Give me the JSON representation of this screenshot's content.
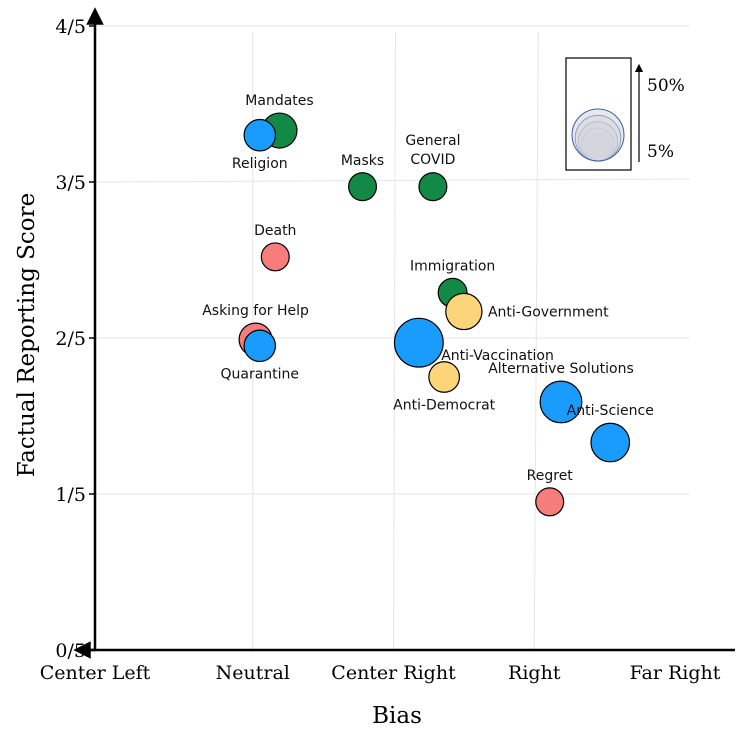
{
  "chart_data": {
    "type": "scatter",
    "title": "",
    "xlabel": "Bias",
    "ylabel": "Factual Reporting Score",
    "xlim": [
      0,
      4
    ],
    "ylim": [
      0,
      4
    ],
    "grid": true,
    "x_ticks": [
      {
        "value": 0,
        "label": "Center Left"
      },
      {
        "value": 1,
        "label": "Neutral"
      },
      {
        "value": 2,
        "label": "Center Right"
      },
      {
        "value": 3,
        "label": "Right"
      },
      {
        "value": 4,
        "label": "Far Right"
      }
    ],
    "y_ticks": [
      {
        "value": 0,
        "label": "0/5"
      },
      {
        "value": 1,
        "label": "1/5"
      },
      {
        "value": 2,
        "label": "2/5"
      },
      {
        "value": 3,
        "label": "3/5"
      },
      {
        "value": 4,
        "label": "4/5"
      }
    ],
    "colors": {
      "green": "#128a45",
      "blue": "#1a9cff",
      "red": "#f77c7c",
      "yellow": "#fcd47a"
    },
    "size_legend": {
      "max_label": "50%",
      "min_label": "5%",
      "min_value": 5,
      "max_value": 50,
      "values": [
        50,
        42,
        34,
        26,
        18,
        10,
        5
      ],
      "fill": "#d3d6dc",
      "stroke": "#3e5fa3",
      "placement": "top-right"
    },
    "series": [
      {
        "name": "Mandates",
        "x": 1.19,
        "y": 3.33,
        "size": 8,
        "color": "green",
        "label_pos": "above"
      },
      {
        "name": "Religion",
        "x": 1.05,
        "y": 3.3,
        "size": 5.5,
        "color": "blue",
        "label_pos": "below"
      },
      {
        "name": "Masks",
        "x": 1.78,
        "y": 2.97,
        "size": 3.5,
        "color": "green",
        "label_pos": "above"
      },
      {
        "name": "General COVID",
        "x": 2.28,
        "y": 2.97,
        "size": 3.5,
        "color": "green",
        "label_pos": "above-two-line",
        "label_lines": [
          "General",
          "COVID"
        ]
      },
      {
        "name": "Death",
        "x": 1.16,
        "y": 2.52,
        "size": 3.5,
        "color": "red",
        "label_pos": "above"
      },
      {
        "name": "Immigration",
        "x": 2.42,
        "y": 2.29,
        "size": 4,
        "color": "green",
        "label_pos": "above"
      },
      {
        "name": "Anti-Government",
        "x": 2.5,
        "y": 2.17,
        "size": 9,
        "color": "yellow",
        "label_pos": "right"
      },
      {
        "name": "Asking for Help",
        "x": 1.02,
        "y": 1.99,
        "size": 6.5,
        "color": "red",
        "label_pos": "above"
      },
      {
        "name": "Quarantine",
        "x": 1.05,
        "y": 1.95,
        "size": 5.5,
        "color": "blue",
        "label_pos": "below"
      },
      {
        "name": "Anti-Vaccination",
        "x": 2.18,
        "y": 1.97,
        "size": 22,
        "color": "blue",
        "label_pos": "right-below"
      },
      {
        "name": "Anti-Democrat",
        "x": 2.36,
        "y": 1.75,
        "size": 5,
        "color": "yellow",
        "label_pos": "below"
      },
      {
        "name": "Alternative Solutions",
        "x": 3.19,
        "y": 1.59,
        "size": 14,
        "color": "blue",
        "label_pos": "above"
      },
      {
        "name": "Anti-Science",
        "x": 3.54,
        "y": 1.33,
        "size": 11,
        "color": "blue",
        "label_pos": "above"
      },
      {
        "name": "Regret",
        "x": 3.11,
        "y": 0.95,
        "size": 3.5,
        "color": "red",
        "label_pos": "above"
      }
    ]
  }
}
